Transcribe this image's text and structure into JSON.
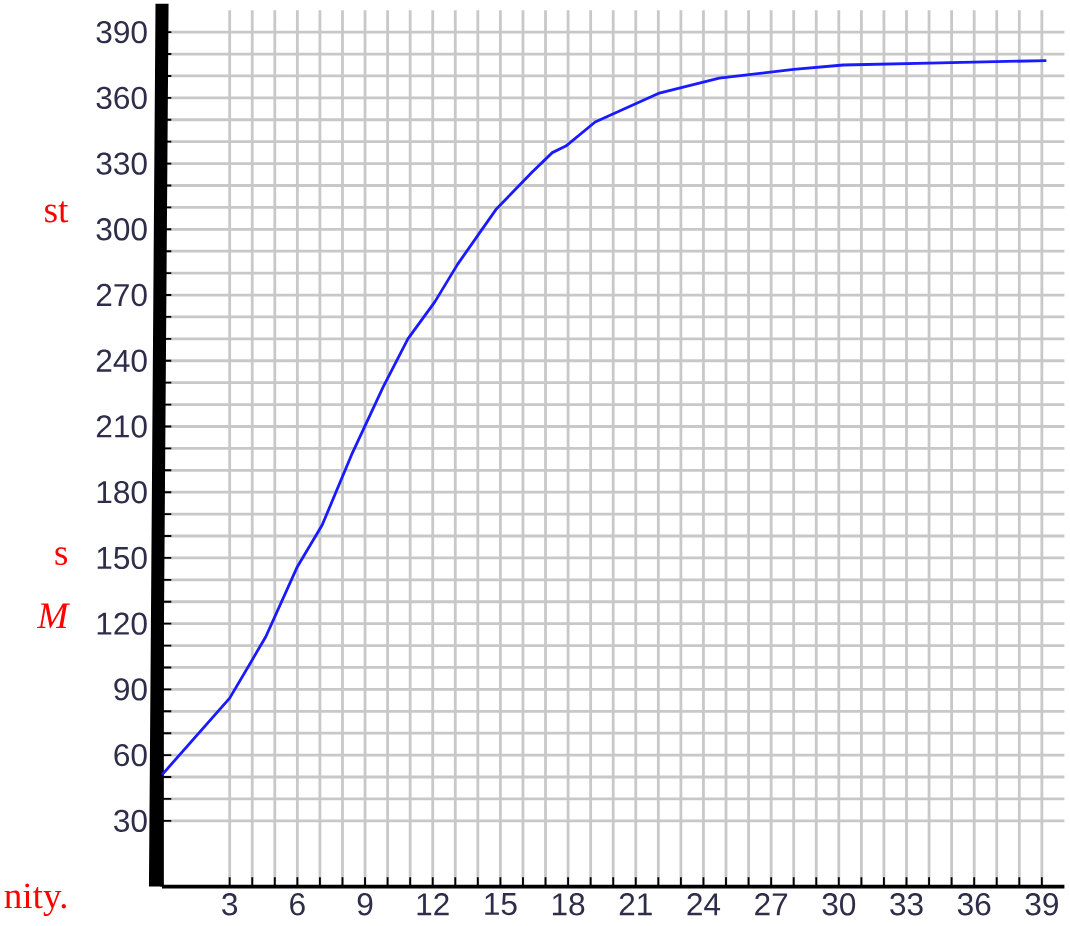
{
  "chart_data": {
    "type": "line",
    "x": [
      0,
      3,
      4.6,
      6,
      7.1,
      8.4,
      9.8,
      10.9,
      12.1,
      13.1,
      14.8,
      16.4,
      17.3,
      17.9,
      19.2,
      22,
      24.7,
      28,
      30.2,
      34.5,
      39.2
    ],
    "series": [
      {
        "color": "#1a1aff",
        "values": [
          51,
          86,
          114,
          146,
          165,
          197,
          228,
          250,
          267,
          284,
          309,
          326,
          335,
          338,
          349,
          362,
          369,
          373,
          375,
          376,
          377
        ]
      }
    ],
    "xlim": [
      0,
      40
    ],
    "ylim": [
      0,
      400
    ],
    "xticks": [
      3,
      6,
      9,
      12,
      15,
      18,
      21,
      24,
      27,
      30,
      33,
      36,
      39
    ],
    "yticks": [
      30,
      60,
      90,
      120,
      150,
      180,
      210,
      240,
      270,
      300,
      330,
      360,
      390
    ],
    "grid": true,
    "marker": "none",
    "line_style": "solid",
    "annotations": [
      "st",
      "s",
      "M",
      "nity."
    ]
  }
}
